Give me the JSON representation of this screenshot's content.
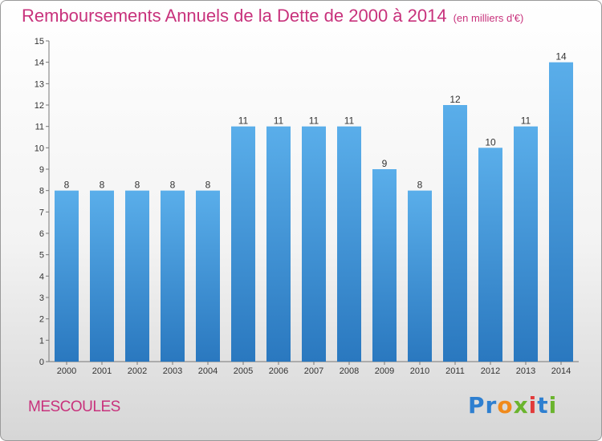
{
  "title": "Remboursements Annuels de la Dette de 2000 à 2014",
  "unit_note": "(en milliers d'€)",
  "commune": "MESCOULES",
  "brand": "Proxiti",
  "colors": {
    "bar": "#3f95dc",
    "title": "#c8327c"
  },
  "chart_data": {
    "type": "bar",
    "title": "Remboursements Annuels de la Dette de 2000 à 2014",
    "xlabel": "",
    "ylabel": "",
    "ylim": [
      0,
      15
    ],
    "yticks": [
      0,
      1,
      2,
      3,
      4,
      5,
      6,
      7,
      8,
      9,
      10,
      11,
      12,
      13,
      14,
      15
    ],
    "grid": false,
    "categories": [
      "2000",
      "2001",
      "2002",
      "2003",
      "2004",
      "2005",
      "2006",
      "2007",
      "2008",
      "2009",
      "2010",
      "2011",
      "2012",
      "2013",
      "2014"
    ],
    "values": [
      8,
      8,
      8,
      8,
      8,
      11,
      11,
      11,
      11,
      9,
      8,
      12,
      10,
      11,
      14
    ]
  }
}
